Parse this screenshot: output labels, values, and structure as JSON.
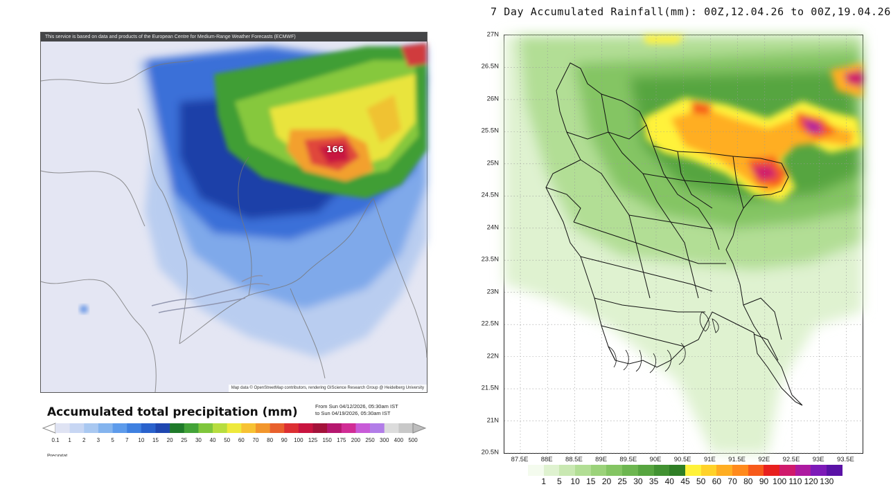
{
  "left_panel": {
    "attribution_top": "This service is based on data and products of the European Centre for Medium-Range Weather Forecasts (ECMWF)",
    "attribution_bottom": "Map data © OpenStreetMap contributors, rendering GIScience Research Group @ Heidelberg University",
    "max_value_label": "166",
    "title": "Accumulated total precipitation (mm)",
    "date_from": "From Sun 04/12/2026, 05:30am IST",
    "date_to": "to Sun 04/19/2026, 05:30am IST",
    "legend": {
      "ticks": [
        "0.1",
        "1",
        "2",
        "3",
        "5",
        "7",
        "10",
        "15",
        "20",
        "25",
        "30",
        "40",
        "50",
        "60",
        "70",
        "80",
        "90",
        "100",
        "125",
        "150",
        "175",
        "200",
        "250",
        "300",
        "400",
        "500"
      ],
      "colors": [
        "#dfe3f3",
        "#c7d6f3",
        "#a9c8f1",
        "#84b4ee",
        "#5d9beb",
        "#3f80e0",
        "#2a62cc",
        "#1f47b0",
        "#1f7a2a",
        "#43a338",
        "#7fc63c",
        "#b7dd3f",
        "#eee93c",
        "#f7c233",
        "#f2962c",
        "#e8602c",
        "#dc2f32",
        "#c8143f",
        "#a3123a",
        "#b5176e",
        "#d12c95",
        "#c85bd8",
        "#b27de8",
        "#dcdcdc",
        "#c8c8c8"
      ]
    },
    "partial_text": "Precipitat"
  },
  "right_panel": {
    "title": "7 Day Accumulated Rainfall(mm): 00Z,12.04.26 to 00Z,19.04.26",
    "lat_labels": [
      "27N",
      "26.5N",
      "26N",
      "25.5N",
      "25N",
      "24.5N",
      "24N",
      "23.5N",
      "23N",
      "22.5N",
      "22N",
      "21.5N",
      "21N",
      "20.5N"
    ],
    "lon_labels": [
      "87.5E",
      "88E",
      "88.5E",
      "89E",
      "89.5E",
      "90E",
      "90.5E",
      "91E",
      "91.5E",
      "92E",
      "92.5E",
      "93E",
      "93.5E"
    ],
    "legend": {
      "labels": [
        "1",
        "5",
        "10",
        "15",
        "20",
        "25",
        "30",
        "35",
        "40",
        "45",
        "50",
        "60",
        "70",
        "80",
        "90",
        "100",
        "110",
        "120",
        "130"
      ],
      "colors": [
        "#f4fbee",
        "#dff2d0",
        "#c9e8b2",
        "#b2de95",
        "#9bd27a",
        "#84c563",
        "#6db650",
        "#57a540",
        "#429232",
        "#2f7e25",
        "#fff23a",
        "#ffd22a",
        "#ffae22",
        "#ff8a1c",
        "#f75a1a",
        "#e8201e",
        "#d01a6c",
        "#ad1aa0",
        "#7d1ab8",
        "#5a12a6"
      ]
    }
  }
}
